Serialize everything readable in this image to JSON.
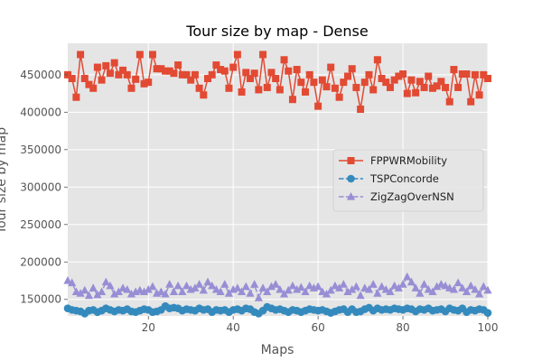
{
  "chart_data": {
    "type": "line",
    "title": "Tour size by map - Dense",
    "xlabel": "Maps",
    "ylabel": "Tour size by map",
    "xlim": [
      1,
      100
    ],
    "ylim": [
      128000,
      492000
    ],
    "xticks": [
      20,
      40,
      60,
      80,
      100
    ],
    "yticks": [
      150000,
      200000,
      250000,
      300000,
      350000,
      400000,
      450000
    ],
    "grid": true,
    "legend": "center-right",
    "background": "#e5e5e5",
    "series": [
      {
        "name": "FPPWRMobility",
        "color": "#e24a33",
        "marker": "square",
        "linestyle": "solid",
        "x": [
          1,
          2,
          3,
          4,
          5,
          6,
          7,
          8,
          9,
          10,
          11,
          12,
          13,
          14,
          15,
          16,
          17,
          18,
          19,
          20,
          21,
          22,
          23,
          24,
          25,
          26,
          27,
          28,
          29,
          30,
          31,
          32,
          33,
          34,
          35,
          36,
          37,
          38,
          39,
          40,
          41,
          42,
          43,
          44,
          45,
          46,
          47,
          48,
          49,
          50,
          51,
          52,
          53,
          54,
          55,
          56,
          57,
          58,
          59,
          60,
          61,
          62,
          63,
          64,
          65,
          66,
          67,
          68,
          69,
          70,
          71,
          72,
          73,
          74,
          75,
          76,
          77,
          78,
          79,
          80,
          81,
          82,
          83,
          84,
          85,
          86,
          87,
          88,
          89,
          90,
          91,
          92,
          93,
          94,
          95,
          96,
          97,
          98,
          99,
          100
        ],
        "values": [
          450000,
          445000,
          420000,
          477000,
          445000,
          437000,
          432000,
          460000,
          443000,
          462000,
          452000,
          466000,
          450000,
          456000,
          450000,
          432000,
          444000,
          477000,
          438000,
          440000,
          477000,
          458000,
          458000,
          455000,
          455000,
          452000,
          463000,
          450000,
          450000,
          443000,
          450000,
          432000,
          423000,
          445000,
          450000,
          463000,
          457000,
          455000,
          432000,
          460000,
          477000,
          427000,
          453000,
          445000,
          452000,
          430000,
          477000,
          433000,
          453000,
          445000,
          430000,
          470000,
          455000,
          417000,
          457000,
          440000,
          427000,
          450000,
          440000,
          408000,
          443000,
          434000,
          460000,
          432000,
          420000,
          440000,
          448000,
          458000,
          433000,
          404000,
          440000,
          450000,
          430000,
          470000,
          445000,
          440000,
          433000,
          443000,
          448000,
          451000,
          425000,
          443000,
          426000,
          441000,
          433000,
          448000,
          432000,
          435000,
          441000,
          433000,
          414000,
          457000,
          433000,
          451000,
          451000,
          414000,
          450000,
          423000,
          450000,
          445000
        ]
      },
      {
        "name": "TSPConcorde",
        "color": "#348abd",
        "marker": "circle",
        "linestyle": "dashed",
        "x": [
          1,
          2,
          3,
          4,
          5,
          6,
          7,
          8,
          9,
          10,
          11,
          12,
          13,
          14,
          15,
          16,
          17,
          18,
          19,
          20,
          21,
          22,
          23,
          24,
          25,
          26,
          27,
          28,
          29,
          30,
          31,
          32,
          33,
          34,
          35,
          36,
          37,
          38,
          39,
          40,
          41,
          42,
          43,
          44,
          45,
          46,
          47,
          48,
          49,
          50,
          51,
          52,
          53,
          54,
          55,
          56,
          57,
          58,
          59,
          60,
          61,
          62,
          63,
          64,
          65,
          66,
          67,
          68,
          69,
          70,
          71,
          72,
          73,
          74,
          75,
          76,
          77,
          78,
          79,
          80,
          81,
          82,
          83,
          84,
          85,
          86,
          87,
          88,
          89,
          90,
          91,
          92,
          93,
          94,
          95,
          96,
          97,
          98,
          99,
          100
        ],
        "values": [
          138000,
          136000,
          135000,
          134000,
          131000,
          135000,
          136000,
          133000,
          135000,
          138000,
          136000,
          134000,
          136000,
          135000,
          137000,
          134000,
          133000,
          135000,
          137000,
          136000,
          133000,
          134000,
          136000,
          141000,
          138000,
          139000,
          138000,
          135000,
          137000,
          136000,
          135000,
          138000,
          136000,
          137000,
          133000,
          136000,
          135000,
          136000,
          133000,
          136000,
          137000,
          135000,
          138000,
          137000,
          133000,
          131000,
          135000,
          140000,
          138000,
          136000,
          137000,
          135000,
          133000,
          136000,
          135000,
          133000,
          135000,
          137000,
          136000,
          135000,
          136000,
          134000,
          132000,
          134000,
          136000,
          137000,
          133000,
          137000,
          133000,
          134000,
          137000,
          139000,
          135000,
          138000,
          136000,
          137000,
          136000,
          138000,
          137000,
          136000,
          138000,
          137000,
          134000,
          137000,
          136000,
          138000,
          135000,
          136000,
          137000,
          134000,
          138000,
          136000,
          135000,
          138000,
          133000,
          136000,
          135000,
          137000,
          136000,
          132000
        ]
      },
      {
        "name": "ZigZagOverNSN",
        "color": "#988ed5",
        "marker": "triangle",
        "linestyle": "dashed",
        "x": [
          1,
          2,
          3,
          4,
          5,
          6,
          7,
          8,
          9,
          10,
          11,
          12,
          13,
          14,
          15,
          16,
          17,
          18,
          19,
          20,
          21,
          22,
          23,
          24,
          25,
          26,
          27,
          28,
          29,
          30,
          31,
          32,
          33,
          34,
          35,
          36,
          37,
          38,
          39,
          40,
          41,
          42,
          43,
          44,
          45,
          46,
          47,
          48,
          49,
          50,
          51,
          52,
          53,
          54,
          55,
          56,
          57,
          58,
          59,
          60,
          61,
          62,
          63,
          64,
          65,
          66,
          67,
          68,
          69,
          70,
          71,
          72,
          73,
          74,
          75,
          76,
          77,
          78,
          79,
          80,
          81,
          82,
          83,
          84,
          85,
          86,
          87,
          88,
          89,
          90,
          91,
          92,
          93,
          94,
          95,
          96,
          97,
          98,
          99,
          100
        ],
        "values": [
          175000,
          172000,
          160000,
          158000,
          162000,
          155000,
          165000,
          156000,
          160000,
          173000,
          168000,
          157000,
          160000,
          165000,
          163000,
          157000,
          160000,
          162000,
          160000,
          163000,
          167000,
          158000,
          160000,
          157000,
          170000,
          160000,
          168000,
          160000,
          168000,
          163000,
          165000,
          170000,
          162000,
          173000,
          168000,
          163000,
          160000,
          170000,
          158000,
          163000,
          165000,
          160000,
          167000,
          158000,
          170000,
          152000,
          165000,
          160000,
          167000,
          170000,
          163000,
          157000,
          162000,
          168000,
          163000,
          166000,
          160000,
          168000,
          165000,
          167000,
          160000,
          157000,
          162000,
          168000,
          165000,
          170000,
          160000,
          163000,
          167000,
          155000,
          165000,
          163000,
          170000,
          158000,
          167000,
          163000,
          160000,
          168000,
          165000,
          170000,
          180000,
          173000,
          165000,
          158000,
          170000,
          163000,
          160000,
          167000,
          170000,
          168000,
          165000,
          163000,
          172000,
          165000,
          160000,
          168000,
          163000,
          157000,
          167000,
          162000
        ]
      }
    ]
  }
}
